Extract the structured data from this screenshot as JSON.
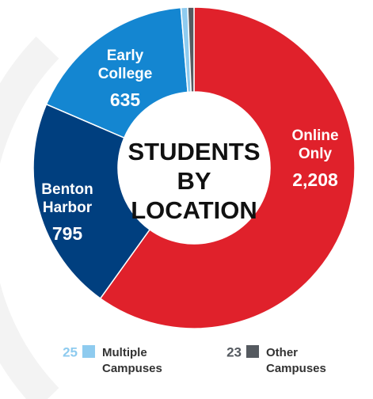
{
  "chart_data": {
    "type": "donut",
    "title": "STUDENTS BY LOCATION",
    "categories": [
      "Online Only",
      "Benton Harbor",
      "Early College",
      "Multiple Campuses",
      "Other Campuses"
    ],
    "values": [
      2208,
      795,
      635,
      25,
      23
    ],
    "value_labels": [
      "2,208",
      "795",
      "635",
      "25",
      "23"
    ],
    "colors": [
      "#e0212b",
      "#003f7f",
      "#1486d1",
      "#8ecbef",
      "#555a60"
    ]
  }
}
